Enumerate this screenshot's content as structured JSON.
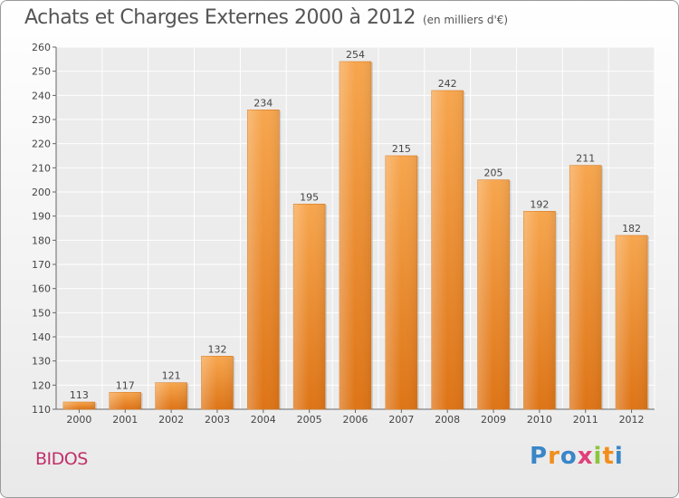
{
  "title": "Achats et Charges Externes 2000 à 2012",
  "subtitle": "(en milliers d'€)",
  "location": "BIDOS",
  "logo": {
    "letters": [
      "P",
      "r",
      "o",
      "x",
      "i",
      "t",
      "i"
    ],
    "colors": [
      "#3a86c8",
      "#f28e1c",
      "#3a86c8",
      "#e0407a",
      "#8cc63f",
      "#f28e1c",
      "#3a86c8"
    ]
  },
  "chart_data": {
    "type": "bar",
    "categories": [
      "2000",
      "2001",
      "2002",
      "2003",
      "2004",
      "2005",
      "2006",
      "2007",
      "2008",
      "2009",
      "2010",
      "2011",
      "2012"
    ],
    "values": [
      113,
      117,
      121,
      132,
      234,
      195,
      254,
      215,
      242,
      205,
      192,
      211,
      182
    ],
    "ylim": [
      110,
      260
    ],
    "yticks": [
      110,
      120,
      130,
      140,
      150,
      160,
      170,
      180,
      190,
      200,
      210,
      220,
      230,
      240,
      250,
      260
    ],
    "grid": true,
    "bar_color": "#f0902e"
  }
}
